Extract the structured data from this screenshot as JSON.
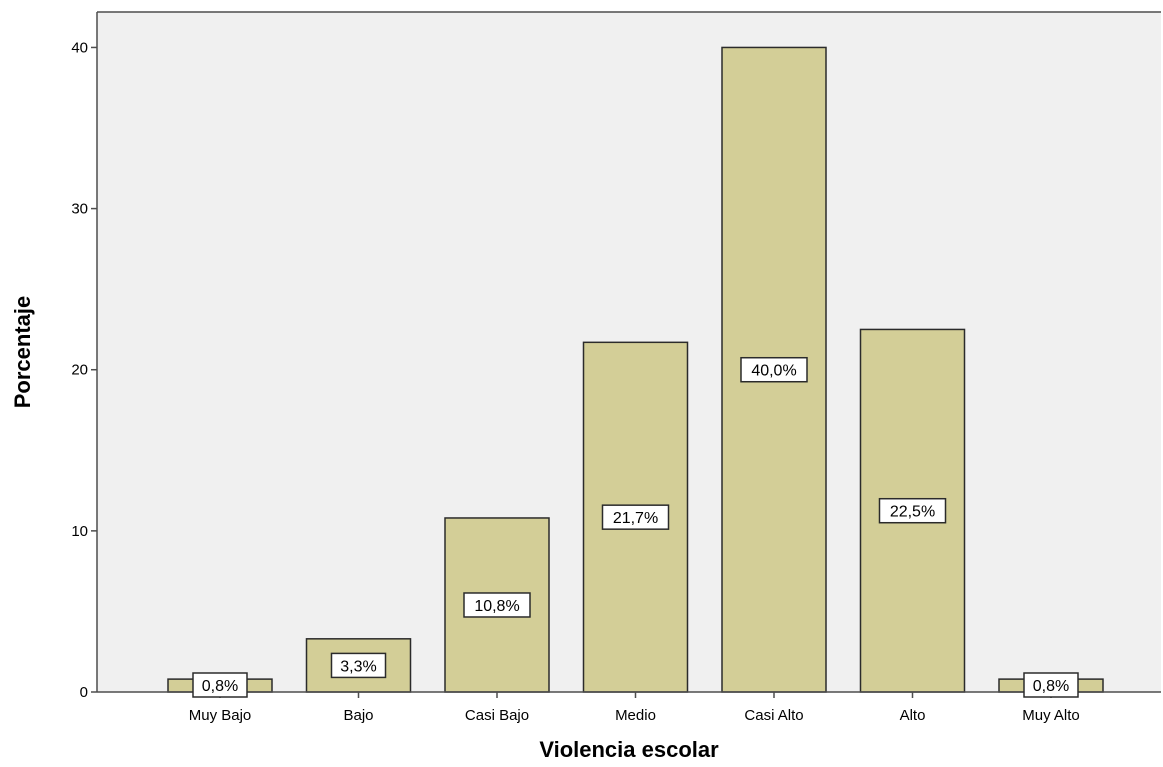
{
  "chart_data": {
    "type": "bar",
    "title": "",
    "xlabel": "Violencia escolar",
    "ylabel": "Porcentaje",
    "categories": [
      "Muy Bajo",
      "Bajo",
      "Casi Bajo",
      "Medio",
      "Casi Alto",
      "Alto",
      "Muy Alto"
    ],
    "values": [
      0.8,
      3.3,
      10.8,
      21.7,
      40.0,
      22.5,
      0.8
    ],
    "data_labels": [
      "0,8%",
      "3,3%",
      "10,8%",
      "21,7%",
      "40,0%",
      "22,5%",
      "0,8%"
    ],
    "yticks": [
      0,
      10,
      20,
      30,
      40
    ],
    "ylim": [
      0,
      42.2
    ],
    "grid": false,
    "legend": "none",
    "colors": {
      "bar_fill": "#d3ce97",
      "bar_stroke": "#2b2b2b",
      "plot_background": "#f0f0f0",
      "axis": "#4d4d4d"
    }
  }
}
